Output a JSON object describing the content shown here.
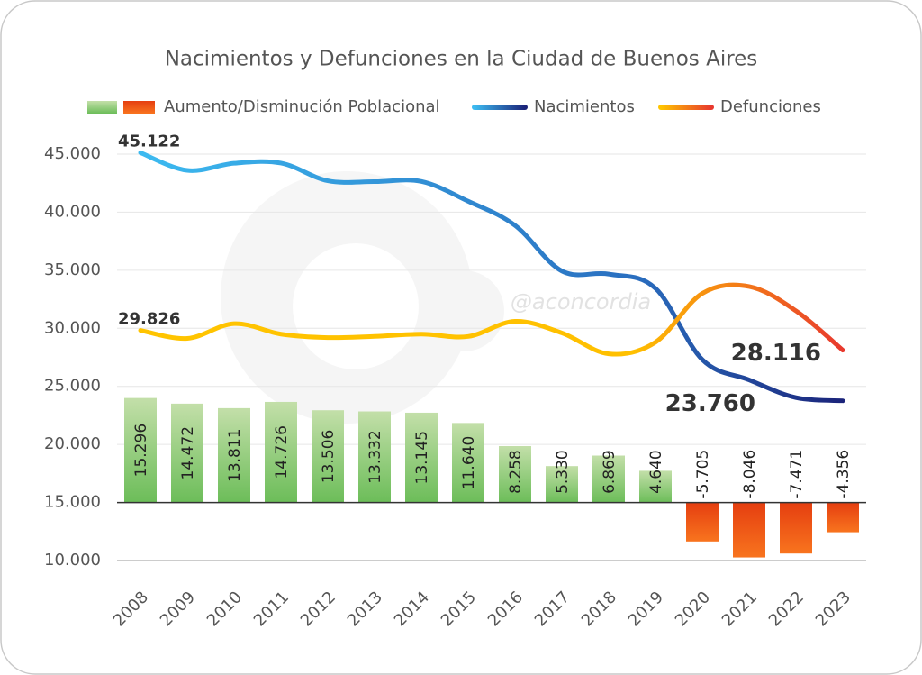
{
  "chart_data": {
    "type": "combo",
    "title": "Nacimientos y Defunciones en la Ciudad de Buenos Aires",
    "watermark": "@aconcordia",
    "categories": [
      "2008",
      "2009",
      "2010",
      "2011",
      "2012",
      "2013",
      "2014",
      "2015",
      "2016",
      "2017",
      "2018",
      "2019",
      "2020",
      "2021",
      "2022",
      "2023"
    ],
    "ylim": [
      10000,
      45000
    ],
    "yticks": [
      {
        "value": 10000,
        "label": "10.000"
      },
      {
        "value": 15000,
        "label": "15.000"
      },
      {
        "value": 20000,
        "label": "20.000"
      },
      {
        "value": 25000,
        "label": "25.000"
      },
      {
        "value": 30000,
        "label": "30.000"
      },
      {
        "value": 35000,
        "label": "35.000"
      },
      {
        "value": 40000,
        "label": "40.000"
      },
      {
        "value": 45000,
        "label": "45.000"
      }
    ],
    "y2lim": [
      -8500,
      51000
    ],
    "grid": true,
    "legend": "top",
    "series": [
      {
        "name": "Aumento/Disminución Poblacional",
        "type": "bar",
        "axis": "y2",
        "colors": [
          "#c3dfa9",
          "#6cbd59"
        ],
        "negative_colors": [
          "#e53e10",
          "#f8741e"
        ],
        "values": [
          15296,
          14472,
          13811,
          14726,
          13506,
          13332,
          13145,
          11640,
          8258,
          5330,
          6869,
          4640,
          -5705,
          -8046,
          -7471,
          -4356
        ],
        "value_labels": [
          "15.296",
          "14.472",
          "13.811",
          "14.726",
          "13.506",
          "13.332",
          "13.145",
          "11.640",
          "8.258",
          "5.330",
          "6.869",
          "4.640",
          "-5.705",
          "-8.046",
          "-7.471",
          "-4.356"
        ]
      },
      {
        "name": "Nacimientos",
        "type": "line",
        "colors": [
          "#3cbaf0",
          "#2a6fc0",
          "#1b247a"
        ],
        "values": [
          45122,
          43600,
          44211,
          44226,
          42706,
          42632,
          42645,
          40940,
          38858,
          34930,
          34669,
          33440,
          27300,
          25554,
          24029,
          23760
        ],
        "value_labels": [
          "45.122",
          null,
          null,
          null,
          null,
          null,
          null,
          null,
          null,
          null,
          null,
          null,
          null,
          null,
          null,
          "23.760"
        ]
      },
      {
        "name": "Defunciones",
        "type": "line",
        "colors": [
          "#ffc400",
          "#ffc000",
          "#e8392e"
        ],
        "values": [
          29826,
          29128,
          30400,
          29500,
          29200,
          29300,
          29500,
          29300,
          30600,
          29600,
          27800,
          28800,
          33005,
          33600,
          31500,
          28116
        ],
        "value_labels": [
          "29.826",
          null,
          null,
          null,
          null,
          null,
          null,
          null,
          null,
          null,
          null,
          null,
          null,
          null,
          null,
          "28.116"
        ]
      }
    ]
  }
}
